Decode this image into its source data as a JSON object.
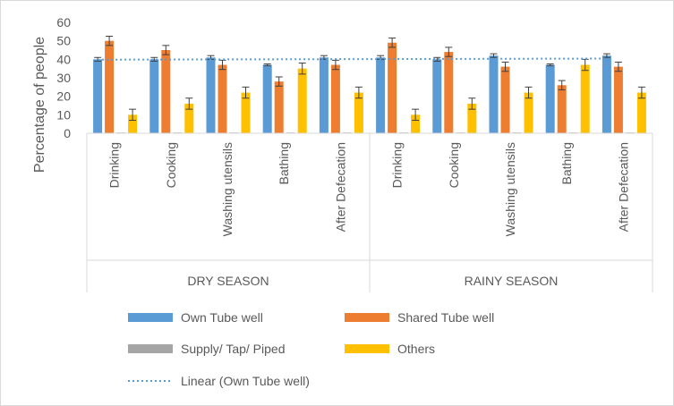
{
  "chart_data": {
    "type": "bar",
    "ylabel": "Percentage of people",
    "ylim": [
      0,
      60
    ],
    "yticks": [
      0,
      10,
      20,
      30,
      40,
      50,
      60
    ],
    "groups": [
      "DRY SEASON",
      "RAINY SEASON"
    ],
    "categories": [
      "Drinking",
      "Cooking",
      "Washing utensils",
      "Bathing",
      "After Defecation",
      "Drinking",
      "Cooking",
      "Washing utensils",
      "Bathing",
      "After Defecation"
    ],
    "series": [
      {
        "name": "Own Tube well",
        "color": "#5b9bd5",
        "values": [
          40,
          40,
          41,
          37,
          41,
          41,
          40,
          42,
          37,
          42
        ],
        "errors": [
          1,
          1,
          1,
          0.5,
          1,
          1,
          1,
          1,
          0.5,
          1
        ]
      },
      {
        "name": "Shared Tube well",
        "color": "#ed7d31",
        "values": [
          50,
          45,
          37,
          28,
          37,
          49,
          44,
          36,
          26,
          36
        ],
        "errors": [
          2.5,
          2.5,
          2.5,
          2.5,
          2.5,
          2.5,
          2.5,
          2.5,
          2.5,
          2.5
        ]
      },
      {
        "name": "Supply/ Tap/ Piped",
        "color": "#a5a5a5",
        "values": [
          0,
          0,
          0,
          0,
          0,
          0,
          0,
          0,
          0,
          0
        ],
        "errors": [
          0,
          0,
          0,
          0,
          0,
          0,
          0,
          0,
          0,
          0
        ]
      },
      {
        "name": "Others",
        "color": "#ffc000",
        "values": [
          10,
          16,
          22,
          35,
          22,
          10,
          16,
          22,
          37,
          22
        ],
        "errors": [
          3,
          3,
          3,
          3,
          3,
          3,
          3,
          3,
          3,
          3
        ]
      }
    ],
    "trendline": {
      "name": "Linear (Own Tube well)",
      "color": "#5b9bd5",
      "style": "dotted",
      "series": "Own Tube well"
    },
    "legend_position": "bottom",
    "grid": false
  }
}
